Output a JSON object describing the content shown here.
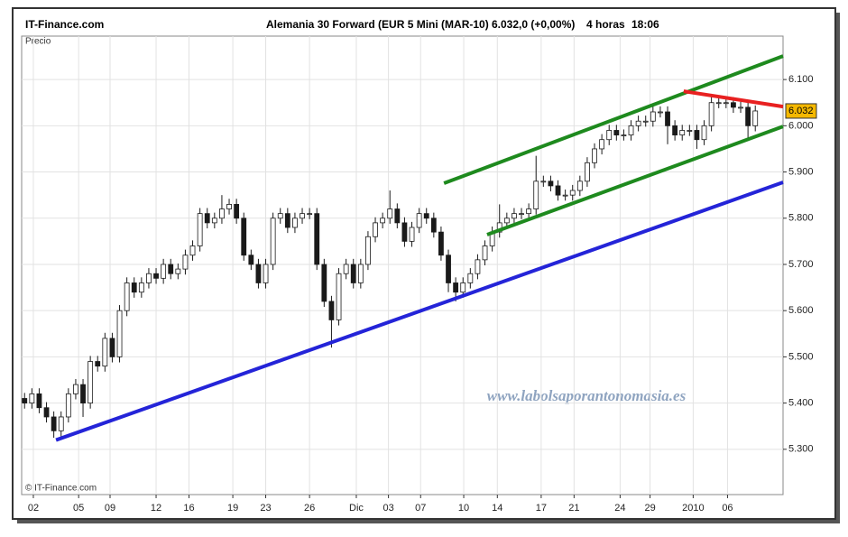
{
  "chart_data": {
    "type": "candlestick",
    "site": "IT-Finance.com",
    "title": "Alemania 30 Forward (EUR 5 Mini (MAR-10)",
    "quote": "6.032,0 (+0,00%)",
    "interval": "4 horas",
    "time": "18:06",
    "y_label": "Precio",
    "copyright": "© IT-Finance.com",
    "watermark": "www.labolsaporantonomasia.es",
    "last_price": {
      "value": 6032,
      "label": "6.032"
    },
    "up_color": "#ffffff",
    "down_color": "#1a1a1a",
    "wick_color": "#1a1a1a",
    "grid": true,
    "xlim": [
      -0.4,
      103.8
    ],
    "ylim": [
      5202,
      6194
    ],
    "yticks": [
      {
        "value": 5300,
        "label": "5.300"
      },
      {
        "value": 5400,
        "label": "5.400"
      },
      {
        "value": 5500,
        "label": "5.500"
      },
      {
        "value": 5600,
        "label": "5.600"
      },
      {
        "value": 5700,
        "label": "5.700"
      },
      {
        "value": 5800,
        "label": "5.800"
      },
      {
        "value": 5900,
        "label": "5.900"
      },
      {
        "value": 6000,
        "label": "6.000"
      },
      {
        "value": 6100,
        "label": "6.100"
      }
    ],
    "xticks": [
      {
        "value": 1.2,
        "label": "02"
      },
      {
        "value": 7.4,
        "label": "05"
      },
      {
        "value": 11.7,
        "label": "09"
      },
      {
        "value": 18,
        "label": "12"
      },
      {
        "value": 22.5,
        "label": "16"
      },
      {
        "value": 28.5,
        "label": "19"
      },
      {
        "value": 33,
        "label": "23"
      },
      {
        "value": 39,
        "label": "26"
      },
      {
        "value": 45.4,
        "label": "Dic"
      },
      {
        "value": 49.8,
        "label": "03"
      },
      {
        "value": 54.2,
        "label": "07"
      },
      {
        "value": 60.1,
        "label": "10"
      },
      {
        "value": 64.7,
        "label": "14"
      },
      {
        "value": 70.7,
        "label": "17"
      },
      {
        "value": 75.2,
        "label": "21"
      },
      {
        "value": 81.5,
        "label": "24"
      },
      {
        "value": 85.6,
        "label": "29"
      },
      {
        "value": 91.5,
        "label": "2010"
      },
      {
        "value": 96.2,
        "label": "06"
      }
    ],
    "open": [
      5410,
      5400,
      5420,
      5390,
      5370,
      5340,
      5370,
      5420,
      5440,
      5400,
      5490,
      5480,
      5540,
      5500,
      5600,
      5660,
      5640,
      5660,
      5680,
      5670,
      5700,
      5680,
      5690,
      5720,
      5740,
      5810,
      5790,
      5800,
      5820,
      5830,
      5800,
      5720,
      5700,
      5660,
      5700,
      5800,
      5810,
      5780,
      5800,
      5810,
      5810,
      5700,
      5620,
      5580,
      5680,
      5700,
      5660,
      5700,
      5760,
      5790,
      5800,
      5820,
      5790,
      5750,
      5780,
      5810,
      5800,
      5770,
      5720,
      5660,
      5640,
      5660,
      5680,
      5710,
      5740,
      5770,
      5790,
      5800,
      5810,
      5810,
      5820,
      5880,
      5880,
      5870,
      5850,
      5850,
      5860,
      5880,
      5920,
      5950,
      5970,
      5990,
      5980,
      5980,
      6000,
      6010,
      6010,
      6030,
      6030,
      6000,
      5980,
      5990,
      5990,
      5970,
      6000,
      6050,
      6050,
      6050,
      6040,
      6040,
      6000
    ],
    "high": [
      5422,
      5432,
      5432,
      5402,
      5382,
      5382,
      5432,
      5452,
      5452,
      5502,
      5502,
      5552,
      5552,
      5612,
      5672,
      5672,
      5672,
      5692,
      5692,
      5712,
      5712,
      5702,
      5732,
      5752,
      5822,
      5822,
      5812,
      5850,
      5842,
      5842,
      5812,
      5732,
      5712,
      5712,
      5812,
      5822,
      5822,
      5812,
      5822,
      5822,
      5822,
      5712,
      5632,
      5692,
      5712,
      5712,
      5712,
      5772,
      5802,
      5812,
      5860,
      5832,
      5802,
      5792,
      5822,
      5822,
      5812,
      5782,
      5732,
      5672,
      5672,
      5692,
      5722,
      5752,
      5782,
      5830,
      5812,
      5822,
      5822,
      5832,
      5935,
      5892,
      5892,
      5882,
      5862,
      5872,
      5892,
      5932,
      5962,
      5982,
      6002,
      6002,
      5992,
      6012,
      6022,
      6022,
      6042,
      6042,
      6042,
      6012,
      6002,
      6002,
      6002,
      6012,
      6062,
      6062,
      6062,
      6062,
      6052,
      6052,
      6044
    ],
    "low": [
      5388,
      5388,
      5378,
      5358,
      5325,
      5328,
      5358,
      5408,
      5370,
      5388,
      5468,
      5468,
      5488,
      5488,
      5588,
      5628,
      5628,
      5648,
      5658,
      5658,
      5668,
      5668,
      5678,
      5708,
      5728,
      5778,
      5778,
      5788,
      5808,
      5788,
      5708,
      5688,
      5648,
      5648,
      5688,
      5788,
      5768,
      5768,
      5788,
      5798,
      5688,
      5608,
      5520,
      5568,
      5668,
      5648,
      5648,
      5688,
      5748,
      5778,
      5788,
      5778,
      5738,
      5738,
      5768,
      5788,
      5758,
      5708,
      5640,
      5620,
      5628,
      5648,
      5668,
      5698,
      5728,
      5758,
      5778,
      5788,
      5798,
      5798,
      5808,
      5868,
      5858,
      5838,
      5838,
      5838,
      5848,
      5868,
      5908,
      5938,
      5958,
      5968,
      5968,
      5968,
      5988,
      5998,
      5998,
      6018,
      5960,
      5968,
      5968,
      5978,
      5950,
      5958,
      5988,
      6038,
      6038,
      6028,
      6028,
      5970,
      5988
    ],
    "close": [
      5400,
      5420,
      5390,
      5370,
      5340,
      5370,
      5420,
      5440,
      5400,
      5490,
      5480,
      5540,
      5500,
      5600,
      5660,
      5640,
      5660,
      5680,
      5670,
      5700,
      5680,
      5690,
      5720,
      5740,
      5810,
      5790,
      5800,
      5820,
      5830,
      5800,
      5720,
      5700,
      5660,
      5700,
      5800,
      5810,
      5780,
      5800,
      5810,
      5810,
      5700,
      5620,
      5580,
      5680,
      5700,
      5660,
      5700,
      5760,
      5790,
      5800,
      5820,
      5790,
      5750,
      5780,
      5810,
      5800,
      5770,
      5720,
      5660,
      5640,
      5660,
      5680,
      5710,
      5740,
      5770,
      5790,
      5800,
      5810,
      5810,
      5820,
      5880,
      5880,
      5870,
      5850,
      5850,
      5860,
      5880,
      5920,
      5950,
      5970,
      5990,
      5980,
      5980,
      6000,
      6010,
      6010,
      6030,
      6030,
      6000,
      5980,
      5990,
      5990,
      5970,
      6000,
      6050,
      6050,
      6050,
      6040,
      6040,
      6000,
      6032
    ],
    "trend_lines": [
      {
        "color": "#2424d8",
        "x": [
          4.3,
          103.8
        ],
        "y": [
          5320,
          5877.6
        ]
      },
      {
        "color": "#1e8a1e",
        "x": [
          57.4,
          103.8
        ],
        "y": [
          5875.6,
          6150.7
        ]
      },
      {
        "color": "#1e8a1e",
        "x": [
          63.3,
          103.8
        ],
        "y": [
          5764.4,
          5998.5
        ]
      },
      {
        "color": "#e82020",
        "x": [
          90.2,
          103.8
        ],
        "y": [
          6074.6,
          6041.5
        ]
      }
    ]
  }
}
